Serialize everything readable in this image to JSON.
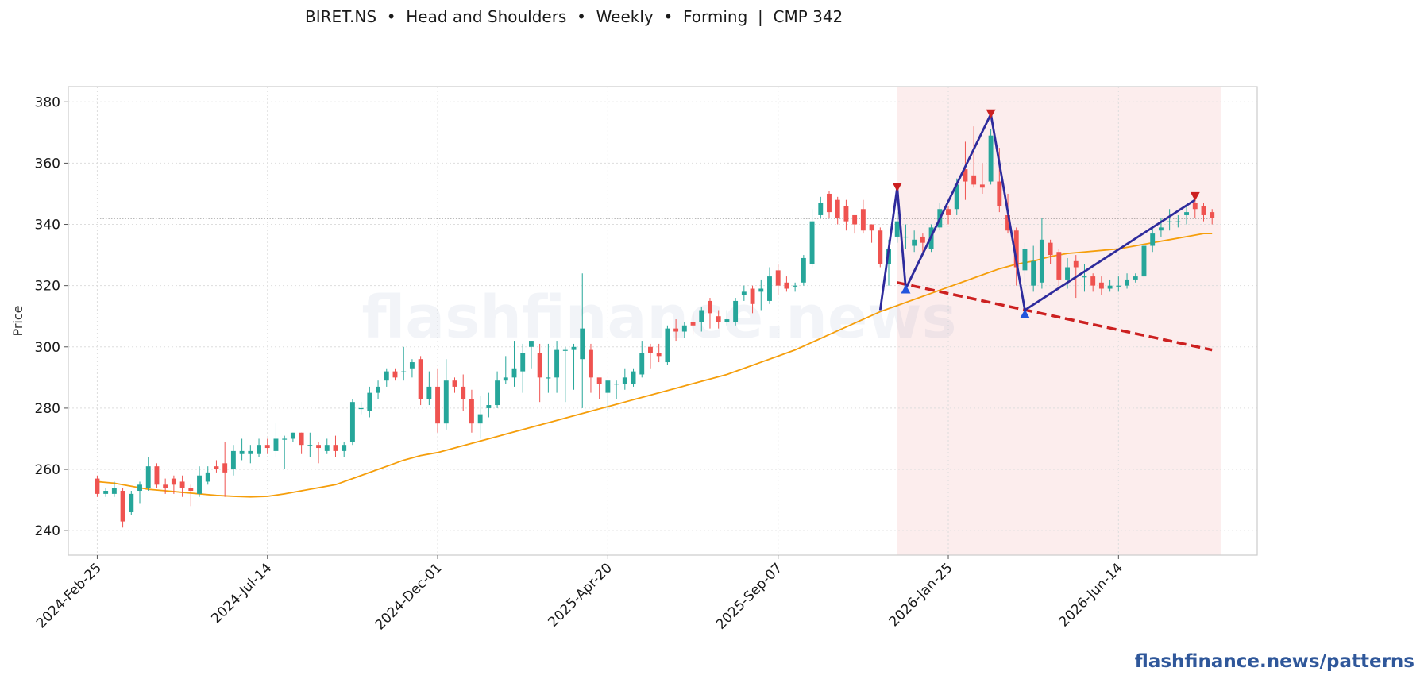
{
  "title": "BIRET.NS  •  Head and Shoulders  •  Weekly  •  Forming  |  CMP 342",
  "watermark": "flashfinance.news",
  "footer_link": "flashfinance.news/patterns",
  "colors": {
    "up": "#26a69a",
    "down": "#ef5350",
    "ma": "#f59e0b",
    "pattern_line": "#2e2b9c",
    "neckline": "#cc2020",
    "highlight": "#fbe9e9",
    "peak_marker": "#cc2020",
    "trough_marker": "#2255dd"
  },
  "chart_data": {
    "type": "candlestick",
    "ylabel": "Price",
    "ylim": [
      232,
      385
    ],
    "yticks": [
      240,
      260,
      280,
      300,
      320,
      340,
      360,
      380
    ],
    "xlim": [
      -3.4,
      136.3
    ],
    "xticks": [
      {
        "i": 0,
        "label": "2024-Feb-25"
      },
      {
        "i": 20,
        "label": "2024-Jul-14"
      },
      {
        "i": 40,
        "label": "2024-Dec-01"
      },
      {
        "i": 60,
        "label": "2025-Apr-20"
      },
      {
        "i": 80,
        "label": "2025-Sep-07"
      },
      {
        "i": 100,
        "label": "2026-Jan-25"
      },
      {
        "i": 120,
        "label": "2026-Jun-14"
      }
    ],
    "grid": true,
    "cmp_level": 342,
    "highlight_range": [
      94,
      132
    ],
    "pattern_polyline": [
      [
        92,
        312
      ],
      [
        94,
        352
      ],
      [
        95,
        319
      ],
      [
        105,
        376
      ],
      [
        109,
        312
      ],
      [
        129,
        348
      ]
    ],
    "neckline": [
      [
        94,
        321
      ],
      [
        131,
        299
      ]
    ],
    "peak_markers": [
      [
        94,
        352
      ],
      [
        105,
        376
      ],
      [
        129,
        349
      ]
    ],
    "trough_markers": [
      [
        95,
        319
      ],
      [
        109,
        311
      ]
    ],
    "ma": [
      [
        0,
        256
      ],
      [
        2,
        255.5
      ],
      [
        4,
        254.5
      ],
      [
        6,
        253.5
      ],
      [
        8,
        253
      ],
      [
        10,
        252.5
      ],
      [
        12,
        252
      ],
      [
        14,
        251.5
      ],
      [
        16,
        251.2
      ],
      [
        18,
        251
      ],
      [
        20,
        251.2
      ],
      [
        22,
        252
      ],
      [
        24,
        253
      ],
      [
        26,
        254
      ],
      [
        28,
        255
      ],
      [
        30,
        257
      ],
      [
        32,
        259
      ],
      [
        34,
        261
      ],
      [
        36,
        263
      ],
      [
        38,
        264.5
      ],
      [
        40,
        265.5
      ],
      [
        42,
        267
      ],
      [
        44,
        268.5
      ],
      [
        46,
        270
      ],
      [
        48,
        271.5
      ],
      [
        50,
        273
      ],
      [
        52,
        274.5
      ],
      [
        54,
        276
      ],
      [
        56,
        277.5
      ],
      [
        58,
        279
      ],
      [
        60,
        280.5
      ],
      [
        62,
        282
      ],
      [
        64,
        283.5
      ],
      [
        66,
        285
      ],
      [
        68,
        286.5
      ],
      [
        70,
        288
      ],
      [
        72,
        289.5
      ],
      [
        74,
        291
      ],
      [
        76,
        293
      ],
      [
        78,
        295
      ],
      [
        80,
        297
      ],
      [
        82,
        299
      ],
      [
        84,
        301.5
      ],
      [
        86,
        304
      ],
      [
        88,
        306.5
      ],
      [
        90,
        309
      ],
      [
        92,
        311.5
      ],
      [
        94,
        313.5
      ],
      [
        96,
        315.5
      ],
      [
        98,
        317.5
      ],
      [
        100,
        319.5
      ],
      [
        102,
        321.5
      ],
      [
        104,
        323.5
      ],
      [
        106,
        325.5
      ],
      [
        108,
        327
      ],
      [
        110,
        328
      ],
      [
        112,
        329.5
      ],
      [
        114,
        330.5
      ],
      [
        116,
        331
      ],
      [
        118,
        331.5
      ],
      [
        120,
        332
      ],
      [
        122,
        333
      ],
      [
        124,
        334
      ],
      [
        126,
        335
      ],
      [
        128,
        336
      ],
      [
        130,
        337
      ],
      [
        131,
        337
      ]
    ],
    "candles": [
      [
        0,
        257,
        252,
        258,
        251
      ],
      [
        1,
        252,
        253,
        254,
        251
      ],
      [
        2,
        252,
        254,
        256,
        251
      ],
      [
        3,
        253,
        243,
        254,
        241
      ],
      [
        4,
        246,
        252,
        253,
        245
      ],
      [
        5,
        253,
        255,
        256,
        249
      ],
      [
        6,
        254,
        261,
        264,
        253
      ],
      [
        7,
        261,
        255,
        262,
        254
      ],
      [
        8,
        255,
        254,
        257,
        252
      ],
      [
        9,
        257,
        255,
        258,
        252
      ],
      [
        10,
        256,
        254,
        258,
        251
      ],
      [
        11,
        254,
        253,
        255,
        248
      ],
      [
        12,
        252,
        258,
        261,
        251
      ],
      [
        13,
        256,
        259,
        261,
        255
      ],
      [
        14,
        261,
        260,
        263,
        259
      ],
      [
        15,
        262,
        259,
        269,
        251
      ],
      [
        16,
        260,
        266,
        268,
        258
      ],
      [
        17,
        265,
        266,
        270,
        263
      ],
      [
        18,
        265,
        266,
        268,
        262
      ],
      [
        19,
        265,
        268,
        270,
        264
      ],
      [
        20,
        268,
        267,
        270,
        265
      ],
      [
        21,
        266,
        270,
        275,
        264
      ],
      [
        22,
        270,
        270,
        271,
        260
      ],
      [
        23,
        270,
        272,
        272,
        269
      ],
      [
        24,
        272,
        268,
        272,
        265
      ],
      [
        25,
        268,
        268,
        272,
        264
      ],
      [
        26,
        268,
        267,
        269,
        262
      ],
      [
        27,
        266,
        268,
        270,
        265
      ],
      [
        28,
        268,
        266,
        271,
        264
      ],
      [
        29,
        266,
        268,
        269,
        264
      ],
      [
        30,
        269,
        282,
        283,
        268
      ],
      [
        31,
        280,
        280,
        282,
        278
      ],
      [
        32,
        279,
        285,
        287,
        277
      ],
      [
        33,
        285,
        287,
        289,
        283
      ],
      [
        34,
        289,
        292,
        293,
        287
      ],
      [
        35,
        292,
        290,
        293,
        289
      ],
      [
        36,
        292,
        292,
        300,
        289
      ],
      [
        37,
        293,
        295,
        296,
        290
      ],
      [
        38,
        296,
        283,
        297,
        281
      ],
      [
        39,
        283,
        287,
        292,
        281
      ],
      [
        40,
        287,
        275,
        293,
        272
      ],
      [
        41,
        275,
        289,
        296,
        273
      ],
      [
        42,
        289,
        287,
        290,
        285
      ],
      [
        43,
        287,
        283,
        291,
        279
      ],
      [
        44,
        283,
        275,
        286,
        272
      ],
      [
        45,
        275,
        278,
        284,
        270
      ],
      [
        46,
        280,
        281,
        285,
        277
      ],
      [
        47,
        281,
        289,
        292,
        280
      ],
      [
        48,
        289,
        290,
        297,
        288
      ],
      [
        49,
        290,
        293,
        302,
        287
      ],
      [
        50,
        292,
        298,
        301,
        285
      ],
      [
        51,
        300,
        302,
        302,
        293
      ],
      [
        52,
        298,
        290,
        301,
        282
      ],
      [
        53,
        290,
        290,
        301,
        285
      ],
      [
        54,
        290,
        299,
        302,
        285
      ],
      [
        55,
        299,
        299,
        300,
        282
      ],
      [
        56,
        299,
        300,
        301,
        286
      ],
      [
        57,
        296,
        306,
        324,
        280
      ],
      [
        58,
        299,
        290,
        301,
        285
      ],
      [
        59,
        290,
        288,
        289,
        283
      ],
      [
        60,
        285,
        289,
        289,
        279
      ],
      [
        61,
        288,
        288,
        289,
        283
      ],
      [
        62,
        288,
        290,
        293,
        286
      ],
      [
        63,
        288,
        292,
        293,
        287
      ],
      [
        64,
        291,
        298,
        302,
        290
      ],
      [
        65,
        300,
        298,
        301,
        293
      ],
      [
        66,
        298,
        297,
        301,
        295
      ],
      [
        67,
        295,
        306,
        307,
        294
      ],
      [
        68,
        306,
        305,
        309,
        302
      ],
      [
        69,
        305,
        307,
        308,
        303
      ],
      [
        70,
        308,
        307,
        311,
        304
      ],
      [
        71,
        308,
        312,
        313,
        305
      ],
      [
        72,
        315,
        311,
        316,
        306
      ],
      [
        73,
        310,
        308,
        312,
        306
      ],
      [
        74,
        308,
        309,
        312,
        307
      ],
      [
        75,
        308,
        315,
        316,
        307
      ],
      [
        76,
        317,
        318,
        320,
        315
      ],
      [
        77,
        319,
        314,
        320,
        311
      ],
      [
        78,
        318,
        319,
        322,
        312
      ],
      [
        79,
        315,
        323,
        326,
        314
      ],
      [
        80,
        325,
        320,
        327,
        317
      ],
      [
        81,
        321,
        319,
        323,
        318
      ],
      [
        82,
        320,
        320,
        321,
        318
      ],
      [
        83,
        321,
        329,
        330,
        320
      ],
      [
        84,
        327,
        341,
        345,
        326
      ],
      [
        85,
        343,
        347,
        349,
        342
      ],
      [
        86,
        350,
        344,
        351,
        342
      ],
      [
        87,
        348,
        342,
        349,
        340
      ],
      [
        88,
        346,
        341,
        348,
        338
      ],
      [
        89,
        343,
        340,
        343,
        337
      ],
      [
        90,
        345,
        338,
        348,
        337
      ],
      [
        91,
        340,
        338,
        340,
        334
      ],
      [
        92,
        338,
        327,
        339,
        326
      ],
      [
        93,
        327,
        332,
        335,
        320
      ],
      [
        94,
        336,
        341,
        344,
        334
      ],
      [
        95,
        336,
        336,
        340,
        332
      ],
      [
        96,
        333,
        335,
        338,
        331
      ],
      [
        97,
        336,
        334,
        337,
        330
      ],
      [
        98,
        332,
        339,
        340,
        331
      ],
      [
        99,
        339,
        345,
        347,
        338
      ],
      [
        100,
        345,
        343,
        346,
        340
      ],
      [
        101,
        345,
        353,
        355,
        343
      ],
      [
        102,
        358,
        354,
        367,
        348
      ],
      [
        103,
        356,
        353,
        372,
        352
      ],
      [
        104,
        353,
        352,
        360,
        350
      ],
      [
        105,
        354,
        369,
        371,
        353
      ],
      [
        106,
        354,
        346,
        365,
        344
      ],
      [
        107,
        343,
        338,
        350,
        337
      ],
      [
        108,
        338,
        326,
        339,
        320
      ],
      [
        109,
        325,
        332,
        334,
        316
      ],
      [
        110,
        320,
        328,
        333,
        318
      ],
      [
        111,
        321,
        335,
        342,
        319
      ],
      [
        112,
        334,
        330,
        335,
        327
      ],
      [
        113,
        331,
        322,
        332,
        318
      ],
      [
        114,
        322,
        326,
        329,
        319
      ],
      [
        115,
        328,
        326,
        330,
        316
      ],
      [
        116,
        323,
        323,
        327,
        318
      ],
      [
        117,
        323,
        320,
        324,
        318
      ],
      [
        118,
        321,
        319,
        323,
        317
      ],
      [
        119,
        319,
        320,
        322,
        318
      ],
      [
        120,
        320,
        320,
        323,
        318
      ],
      [
        121,
        320,
        322,
        324,
        319
      ],
      [
        122,
        322,
        323,
        324,
        321
      ],
      [
        123,
        323,
        333,
        337,
        322
      ],
      [
        124,
        333,
        337,
        339,
        331
      ],
      [
        125,
        338,
        339,
        342,
        336
      ],
      [
        126,
        341,
        341,
        345,
        338
      ],
      [
        127,
        341,
        341,
        343,
        339
      ],
      [
        128,
        343,
        344,
        346,
        340
      ],
      [
        129,
        347,
        345,
        349,
        342
      ],
      [
        130,
        346,
        343,
        347,
        341
      ],
      [
        131,
        344,
        342,
        345,
        340
      ]
    ]
  }
}
